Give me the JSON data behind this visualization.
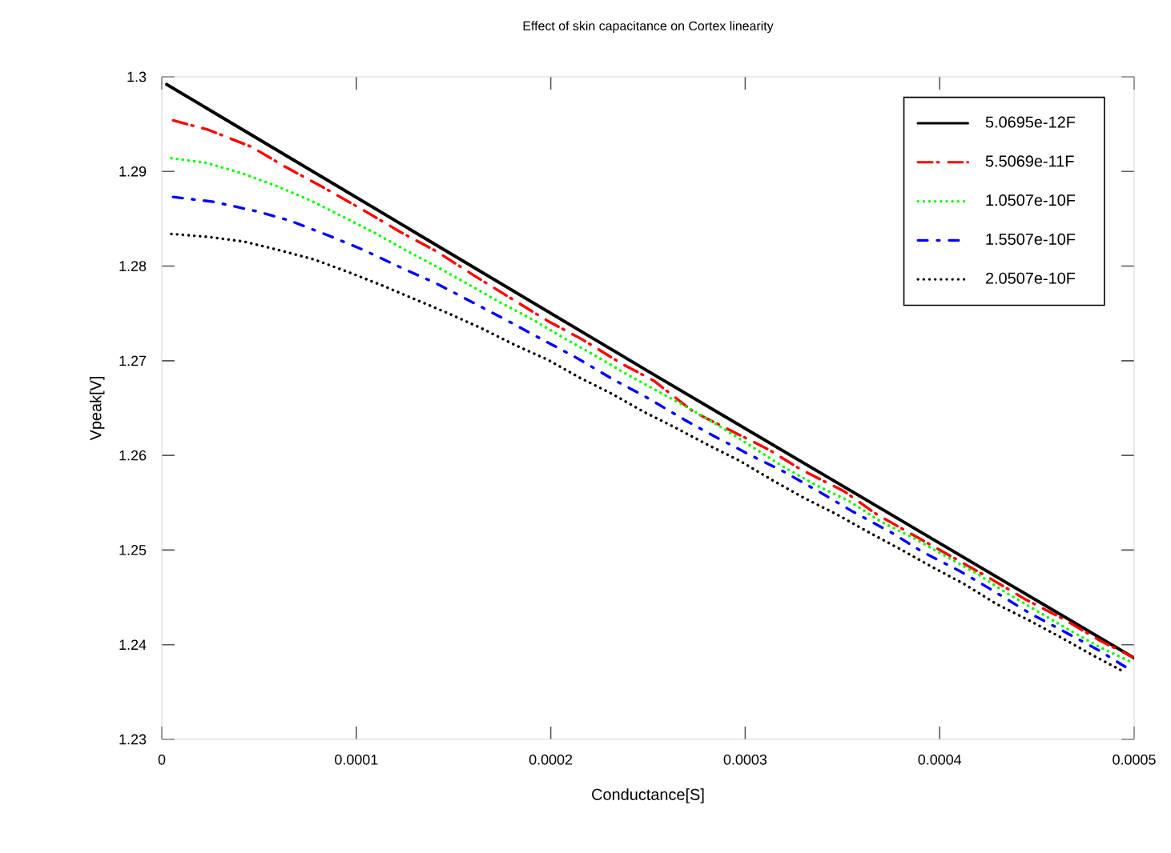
{
  "chart_data": {
    "type": "line",
    "title": "Effect of skin capacitance on Cortex linearity",
    "xlabel": "Conductance[S]",
    "ylabel": "Vpeak[V]",
    "xlim": [
      0,
      0.0005
    ],
    "ylim": [
      1.23,
      1.3
    ],
    "xticks": [
      0,
      0.0001,
      0.0002,
      0.0003,
      0.0004,
      0.0005
    ],
    "yticks": [
      1.23,
      1.24,
      1.25,
      1.26,
      1.27,
      1.28,
      1.29,
      1.3
    ],
    "grid": false,
    "legend": "top right",
    "marker": "none",
    "series": [
      {
        "name": "5.0695e-12F",
        "color": "#000000",
        "line_style": "solid",
        "x": [
          2.5e-06,
          0.00025,
          0.0005
        ],
        "values": [
          1.2992,
          1.2689,
          1.2386
        ]
      },
      {
        "name": "5.5069e-11F",
        "color": "#ff0000",
        "line_style": "dashed",
        "x": [
          5.8e-06,
          2.39e-05,
          4.61e-05,
          6.34e-05,
          8.4e-05,
          0.0001021,
          0.0001227,
          0.0001409,
          0.0001614,
          0.0001779,
          0.0001985,
          0.0002158,
          0.0002364,
          0.0002529,
          0.0002735,
          0.0002899,
          0.0003122,
          0.0003287,
          0.0003509,
          0.0003674,
          0.000388,
          0.0004053,
          0.0004259,
          0.000444,
          0.0004646,
          0.0004827,
          0.0004992
        ],
        "values": [
          1.2954,
          1.2944,
          1.2926,
          1.2905,
          1.2882,
          1.2861,
          1.2836,
          1.2816,
          1.2789,
          1.2768,
          1.2742,
          1.2723,
          1.2697,
          1.2679,
          1.2646,
          1.2629,
          1.2606,
          1.2585,
          1.2562,
          1.2538,
          1.2514,
          1.2494,
          1.247,
          1.2448,
          1.2426,
          1.2404,
          1.2387
        ]
      },
      {
        "name": "1.0507e-10F",
        "color": "#00ff00",
        "line_style": "dotted",
        "x": [
          4.9e-06,
          2.31e-05,
          4.12e-05,
          5.85e-05,
          7.58e-05,
          9.23e-05,
          0.0001087,
          0.0001252,
          0.0001417,
          0.0001582,
          0.0001746,
          0.0001911,
          0.0002076,
          0.000224,
          0.0002397,
          0.0002727,
          0.0002891,
          0.0003204,
          0.0003369,
          0.0003533,
          0.0003698,
          0.0003863,
          0.0004027,
          0.0004192,
          0.0004341,
          0.0004506,
          0.0004662,
          0.0004827,
          0.0004992
        ],
        "values": [
          1.2914,
          1.2909,
          1.2898,
          1.2885,
          1.287,
          1.2853,
          1.2836,
          1.2817,
          1.2799,
          1.278,
          1.2761,
          1.2743,
          1.2723,
          1.2704,
          1.2685,
          1.2648,
          1.2628,
          1.2587,
          1.2568,
          1.2552,
          1.253,
          1.2513,
          1.2494,
          1.2475,
          1.2455,
          1.2435,
          1.2416,
          1.2397,
          1.2381
        ]
      },
      {
        "name": "1.5507e-10F",
        "color": "#0000ff",
        "line_style": "dashdot",
        "x": [
          5.8e-06,
          2.64e-05,
          4.86e-05,
          6.59e-05,
          8.73e-05,
          0.0001038,
          0.0001244,
          0.0001409,
          0.0001614,
          0.0001771,
          0.0001969,
          0.0002125,
          0.0002323,
          0.0002479,
          0.0002685,
          0.0002834,
          0.0003039,
          0.0003188,
          0.0003394,
          0.000355,
          0.0003756,
          0.0003904,
          0.000411,
          0.0004259,
          0.0004465,
          0.0004621,
          0.0004819,
          0.0004959
        ],
        "values": [
          1.2873,
          1.2868,
          1.2858,
          1.2848,
          1.2831,
          1.2817,
          1.2797,
          1.2782,
          1.276,
          1.2743,
          1.2721,
          1.2704,
          1.268,
          1.2663,
          1.2638,
          1.2621,
          1.2599,
          1.2584,
          1.256,
          1.2541,
          1.2518,
          1.2499,
          1.2477,
          1.2459,
          1.2433,
          1.2416,
          1.2394,
          1.2376
        ]
      },
      {
        "name": "2.0507e-10F",
        "color": "#000000",
        "line_style": "dotted",
        "x": [
          4.9e-06,
          2.31e-05,
          4.2e-05,
          6.01e-05,
          7.83e-05,
          9.55e-05,
          0.0001128,
          0.0001301,
          0.0001474,
          0.0001647,
          0.0001812,
          0.0001985,
          0.000215,
          0.0002315,
          0.0002479,
          0.0002644,
          0.0002809,
          0.0002974,
          0.0003138,
          0.0003303,
          0.0003468,
          0.0003633,
          0.0003797,
          0.0003962,
          0.0004127,
          0.0004292,
          0.0004457,
          0.0004621,
          0.0004786,
          0.0004951
        ],
        "values": [
          1.2834,
          1.2831,
          1.2826,
          1.2817,
          1.2807,
          1.2794,
          1.278,
          1.2765,
          1.275,
          1.2734,
          1.2717,
          1.2701,
          1.2682,
          1.2665,
          1.2646,
          1.2629,
          1.2611,
          1.2594,
          1.2574,
          1.2555,
          1.2538,
          1.2519,
          1.2501,
          1.2482,
          1.2464,
          1.2443,
          1.2426,
          1.2408,
          1.2389,
          1.2371
        ]
      }
    ]
  }
}
